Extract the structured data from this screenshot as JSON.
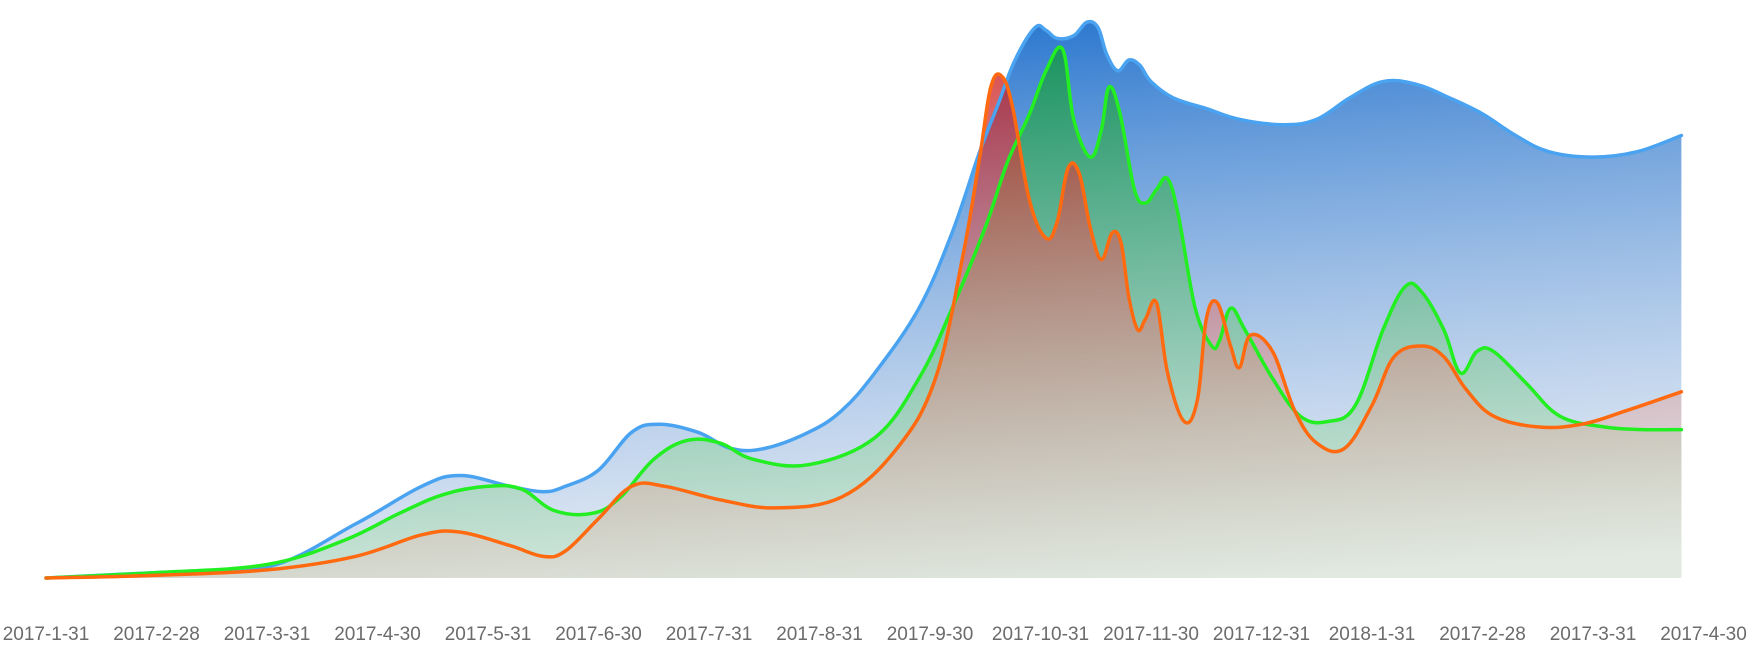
{
  "chart_data": {
    "type": "area",
    "title": "",
    "xlabel": "",
    "ylabel": "",
    "grid": false,
    "legend": "none",
    "ylim": [
      0,
      100
    ],
    "x_tick_labels": [
      "2017-1-31",
      "2017-2-28",
      "2017-3-31",
      "2017-4-30",
      "2017-5-31",
      "2017-6-30",
      "2017-7-31",
      "2017-8-31",
      "2017-9-30",
      "2017-10-31",
      "2017-11-30",
      "2017-12-31",
      "2018-1-31",
      "2017-2-28",
      "2017-3-31",
      "2017-4-30"
    ],
    "series": [
      {
        "line_color": "#4aa3f0",
        "fill_top": "#1e6fcc",
        "fill_bottom": "#dde3ee",
        "points": [
          [
            0,
            0
          ],
          [
            1,
            1
          ],
          [
            2,
            2
          ],
          [
            2.8,
            10
          ],
          [
            3.4,
            17
          ],
          [
            3.75,
            19
          ],
          [
            4.2,
            17
          ],
          [
            4.5,
            16
          ],
          [
            4.7,
            17
          ],
          [
            5,
            20
          ],
          [
            5.3,
            27
          ],
          [
            5.55,
            28.5
          ],
          [
            5.9,
            27
          ],
          [
            6.2,
            24
          ],
          [
            6.5,
            24
          ],
          [
            6.9,
            27
          ],
          [
            7.2,
            31
          ],
          [
            7.5,
            38
          ],
          [
            7.9,
            50
          ],
          [
            8.2,
            64
          ],
          [
            8.45,
            79
          ],
          [
            8.62,
            88
          ],
          [
            8.77,
            96
          ],
          [
            8.95,
            102
          ],
          [
            9.05,
            101.5
          ],
          [
            9.15,
            100
          ],
          [
            9.3,
            100.5
          ],
          [
            9.42,
            103
          ],
          [
            9.52,
            102
          ],
          [
            9.6,
            97
          ],
          [
            9.7,
            94
          ],
          [
            9.8,
            96
          ],
          [
            9.9,
            95
          ],
          [
            10.0,
            92
          ],
          [
            10.2,
            89
          ],
          [
            10.5,
            87
          ],
          [
            10.8,
            85
          ],
          [
            11.2,
            84
          ],
          [
            11.5,
            85
          ],
          [
            11.8,
            89
          ],
          [
            12.1,
            92
          ],
          [
            12.4,
            91.5
          ],
          [
            12.7,
            89
          ],
          [
            13.0,
            86
          ],
          [
            13.3,
            82
          ],
          [
            13.6,
            79
          ],
          [
            14.0,
            78
          ],
          [
            14.4,
            79
          ],
          [
            14.8,
            82
          ]
        ]
      },
      {
        "line_color": "#22ee22",
        "fill_top": "#0e9a36",
        "fill_bottom": "#c5e8c5",
        "points": [
          [
            0,
            0
          ],
          [
            1,
            1
          ],
          [
            2,
            2.5
          ],
          [
            2.7,
            7
          ],
          [
            3.2,
            12
          ],
          [
            3.6,
            15.5
          ],
          [
            4,
            17
          ],
          [
            4.3,
            16.5
          ],
          [
            4.6,
            12.5
          ],
          [
            4.95,
            12
          ],
          [
            5.2,
            15
          ],
          [
            5.5,
            22
          ],
          [
            5.8,
            25.5
          ],
          [
            6.1,
            25
          ],
          [
            6.4,
            22
          ],
          [
            6.9,
            21
          ],
          [
            7.5,
            26
          ],
          [
            7.9,
            37
          ],
          [
            8.2,
            50
          ],
          [
            8.5,
            65
          ],
          [
            8.7,
            77
          ],
          [
            8.9,
            86
          ],
          [
            9.05,
            94
          ],
          [
            9.2,
            98
          ],
          [
            9.3,
            85
          ],
          [
            9.45,
            78
          ],
          [
            9.55,
            83
          ],
          [
            9.62,
            91
          ],
          [
            9.72,
            86
          ],
          [
            9.85,
            72
          ],
          [
            9.95,
            69.5
          ],
          [
            10.05,
            72
          ],
          [
            10.15,
            74
          ],
          [
            10.25,
            67
          ],
          [
            10.4,
            50
          ],
          [
            10.55,
            43
          ],
          [
            10.62,
            44
          ],
          [
            10.72,
            50
          ],
          [
            10.85,
            46
          ],
          [
            11.1,
            37
          ],
          [
            11.35,
            30
          ],
          [
            11.6,
            29
          ],
          [
            11.85,
            32
          ],
          [
            12.1,
            46
          ],
          [
            12.3,
            54
          ],
          [
            12.45,
            53
          ],
          [
            12.65,
            46
          ],
          [
            12.8,
            38
          ],
          [
            12.95,
            42
          ],
          [
            13.1,
            42
          ],
          [
            13.4,
            36
          ],
          [
            13.7,
            30
          ],
          [
            14.1,
            28
          ],
          [
            14.45,
            27.5
          ],
          [
            14.8,
            27.5
          ]
        ]
      },
      {
        "line_color": "#ff6a10",
        "fill_top": "#cc1a1a",
        "fill_bottom": "#e8e4dd",
        "points": [
          [
            0,
            0
          ],
          [
            1,
            0.5
          ],
          [
            2,
            1.5
          ],
          [
            2.8,
            4
          ],
          [
            3.4,
            8
          ],
          [
            3.75,
            8.5
          ],
          [
            4.2,
            6
          ],
          [
            4.5,
            4
          ],
          [
            4.7,
            5
          ],
          [
            5,
            11
          ],
          [
            5.3,
            17
          ],
          [
            5.6,
            17
          ],
          [
            6.1,
            14.5
          ],
          [
            6.6,
            13
          ],
          [
            7.2,
            15
          ],
          [
            7.7,
            24
          ],
          [
            8.05,
            37
          ],
          [
            8.3,
            60
          ],
          [
            8.45,
            78
          ],
          [
            8.55,
            91
          ],
          [
            8.65,
            93
          ],
          [
            8.75,
            87
          ],
          [
            8.9,
            70
          ],
          [
            9.05,
            63
          ],
          [
            9.15,
            66
          ],
          [
            9.25,
            76
          ],
          [
            9.35,
            75
          ],
          [
            9.45,
            65
          ],
          [
            9.55,
            59
          ],
          [
            9.65,
            64
          ],
          [
            9.73,
            62
          ],
          [
            9.8,
            52
          ],
          [
            9.88,
            46
          ],
          [
            9.95,
            48
          ],
          [
            10.05,
            51
          ],
          [
            10.15,
            38
          ],
          [
            10.3,
            29
          ],
          [
            10.42,
            33
          ],
          [
            10.5,
            48
          ],
          [
            10.6,
            51
          ],
          [
            10.72,
            43
          ],
          [
            10.8,
            39
          ],
          [
            10.9,
            45
          ],
          [
            11.1,
            42
          ],
          [
            11.3,
            31
          ],
          [
            11.5,
            25
          ],
          [
            11.75,
            24
          ],
          [
            12.0,
            32
          ],
          [
            12.2,
            41
          ],
          [
            12.45,
            43
          ],
          [
            12.65,
            41
          ],
          [
            12.85,
            35
          ],
          [
            13.1,
            30
          ],
          [
            13.5,
            28
          ],
          [
            13.9,
            28.5
          ],
          [
            14.3,
            31
          ],
          [
            14.8,
            34.5
          ]
        ]
      }
    ]
  }
}
